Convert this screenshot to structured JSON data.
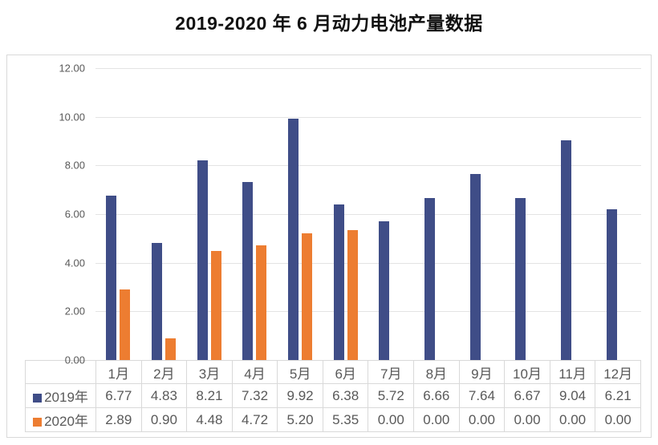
{
  "chart_data": {
    "type": "bar",
    "title": "2019-2020 年 6 月动力电池产量数据",
    "categories": [
      "1月",
      "2月",
      "3月",
      "4月",
      "5月",
      "6月",
      "7月",
      "8月",
      "9月",
      "10月",
      "11月",
      "12月"
    ],
    "series": [
      {
        "name": "2019年",
        "color": "#3F4D87",
        "values": [
          6.77,
          4.83,
          8.21,
          7.32,
          9.92,
          6.38,
          5.72,
          6.66,
          7.64,
          6.67,
          9.04,
          6.21
        ]
      },
      {
        "name": "2020年",
        "color": "#ED7D31",
        "values": [
          2.89,
          0.9,
          4.48,
          4.72,
          5.2,
          5.35,
          0.0,
          0.0,
          0.0,
          0.0,
          0.0,
          0.0
        ]
      }
    ],
    "xlabel": "",
    "ylabel": "",
    "ylim": [
      0,
      12
    ],
    "ytick_labels": [
      "0.00",
      "2.00",
      "4.00",
      "6.00",
      "8.00",
      "10.00",
      "12.00"
    ],
    "ytick_values": [
      0,
      2,
      4,
      6,
      8,
      10,
      12
    ],
    "grid": true,
    "legend_position": "data-table-left",
    "value_decimals": 2
  },
  "colors": {
    "grid": "#e3e3e3",
    "frame_border": "#d9d9d9",
    "table_border": "#d9d9d9",
    "axis_text": "#595959",
    "table_text": "#595959",
    "title_text": "#111111"
  }
}
